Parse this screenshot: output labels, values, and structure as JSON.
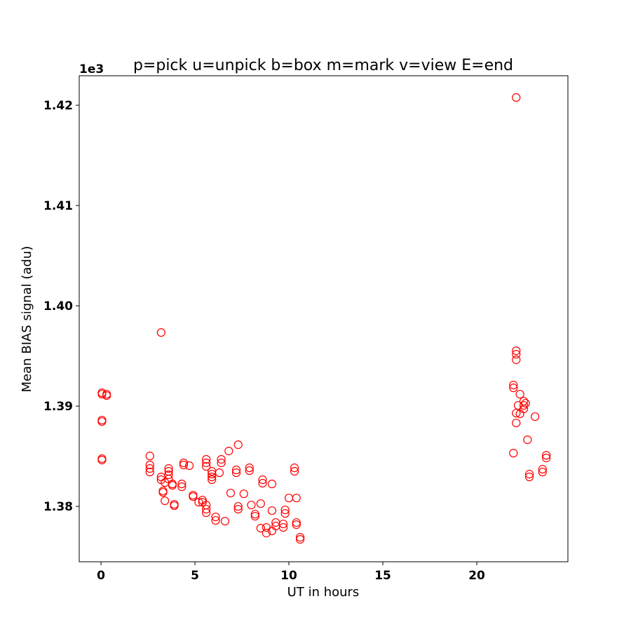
{
  "chart_data": {
    "type": "scatter",
    "title": "p=pick u=unpick b=box m=mark v=view E=end",
    "x_label": "UT in hours",
    "y_label": "Mean BIAS signal (adu)",
    "y_offset_text": "1e3",
    "xlim": [
      -1.16,
      24.85
    ],
    "ylim": [
      1.37448,
      1.42294
    ],
    "xticks": [
      0,
      5,
      10,
      15,
      20
    ],
    "yticks": [
      1.38,
      1.39,
      {
        "value": 1.4,
        "label": "1.40"
      },
      1.41,
      1.42
    ],
    "marker": "hollow-circle",
    "series": [
      {
        "color": "#ff0000",
        "x": [
          0.05,
          0.05,
          0.05,
          0.05,
          0.05,
          0.05,
          0.3,
          0.3,
          2.6,
          2.6,
          2.6,
          2.6,
          3.2,
          3.2,
          3.2,
          3.3,
          3.3,
          3.4,
          3.4,
          3.6,
          3.6,
          3.6,
          3.6,
          3.8,
          3.8,
          3.9,
          3.9,
          4.3,
          4.3,
          4.4,
          4.4,
          4.7,
          4.9,
          4.9,
          5.2,
          5.4,
          5.4,
          5.6,
          5.6,
          5.6,
          5.6,
          5.6,
          5.6,
          5.9,
          5.9,
          5.9,
          5.9,
          6.1,
          6.1,
          6.3,
          6.4,
          6.4,
          6.6,
          6.8,
          6.9,
          7.2,
          7.2,
          7.3,
          7.3,
          7.3,
          7.6,
          7.9,
          7.9,
          8.0,
          8.2,
          8.2,
          8.5,
          8.5,
          8.6,
          8.6,
          8.8,
          8.8,
          9.1,
          9.1,
          9.1,
          9.3,
          9.3,
          9.7,
          9.7,
          9.8,
          9.8,
          10.0,
          10.3,
          10.3,
          10.4,
          10.4,
          10.4,
          10.6,
          10.6,
          22.1,
          21.95,
          21.95,
          21.95,
          22.1,
          22.1,
          22.1,
          22.1,
          22.1,
          22.2,
          22.3,
          22.3,
          22.5,
          22.5,
          22.5,
          22.6,
          22.7,
          22.8,
          22.8,
          23.1,
          23.5,
          23.5,
          23.7,
          23.7
        ],
        "values": [
          1.39133,
          1.39119,
          1.3886,
          1.38846,
          1.38476,
          1.38462,
          1.39119,
          1.39105,
          1.38503,
          1.38413,
          1.38378,
          1.38343,
          1.39734,
          1.38294,
          1.38266,
          1.38154,
          1.3814,
          1.38056,
          1.38238,
          1.38378,
          1.3835,
          1.38315,
          1.38273,
          1.38224,
          1.3821,
          1.38021,
          1.38007,
          1.38224,
          1.38196,
          1.38434,
          1.38413,
          1.38406,
          1.38112,
          1.38098,
          1.38042,
          1.38063,
          1.38042,
          1.38469,
          1.38434,
          1.38399,
          1.38014,
          1.37972,
          1.37937,
          1.3835,
          1.38322,
          1.38294,
          1.38266,
          1.37895,
          1.3786,
          1.38336,
          1.38469,
          1.38434,
          1.37853,
          1.38552,
          1.38133,
          1.38364,
          1.38336,
          1.38615,
          1.37972,
          1.38,
          1.38126,
          1.38385,
          1.38357,
          1.38014,
          1.37923,
          1.37902,
          1.38028,
          1.37783,
          1.38266,
          1.38231,
          1.3779,
          1.37734,
          1.38224,
          1.37958,
          1.37755,
          1.37839,
          1.37804,
          1.37825,
          1.3779,
          1.37965,
          1.3793,
          1.38084,
          1.38385,
          1.3835,
          1.38084,
          1.37839,
          1.37818,
          1.37692,
          1.37671,
          1.42077,
          1.3921,
          1.39182,
          1.38531,
          1.39552,
          1.39517,
          1.39462,
          1.3893,
          1.38832,
          1.39007,
          1.39119,
          1.38923,
          1.39049,
          1.39007,
          1.38972,
          1.39028,
          1.38664,
          1.38322,
          1.38294,
          1.38895,
          1.38371,
          1.38343,
          1.3851,
          1.38483
        ]
      }
    ]
  }
}
